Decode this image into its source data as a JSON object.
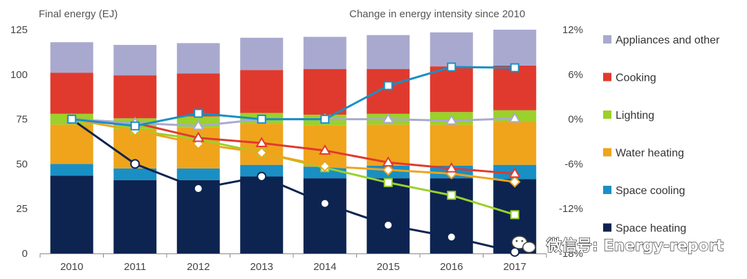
{
  "chart_data": {
    "type": "bar",
    "stacked": true,
    "title_left": "Final energy (EJ)",
    "title_right": "Change in energy intensity since 2010",
    "categories": [
      "2010",
      "2011",
      "2012",
      "2013",
      "2014",
      "2015",
      "2016",
      "2017"
    ],
    "ylim": [
      0,
      125
    ],
    "y_ticks": [
      "0",
      "25",
      "50",
      "75",
      "100",
      "125"
    ],
    "y2lim": [
      -18,
      12
    ],
    "y2_ticks": [
      "12%",
      "6%",
      "0%",
      "-6%",
      "-12%",
      "-18%"
    ],
    "series": [
      {
        "name": "Space heating",
        "color": "#0d2451",
        "values": [
          43.5,
          41,
          41,
          43,
          42,
          42,
          42,
          41.5
        ]
      },
      {
        "name": "Space cooling",
        "color": "#1a8fc4",
        "values": [
          6.5,
          6.5,
          6.5,
          6.5,
          6.5,
          7,
          7,
          8
        ]
      },
      {
        "name": "Water heating",
        "color": "#efa41c",
        "values": [
          22,
          22,
          23,
          23,
          23,
          23,
          23,
          24
        ]
      },
      {
        "name": "Lighting",
        "color": "#9ad12a",
        "values": [
          6,
          6,
          6,
          6,
          6,
          6,
          7,
          6.5
        ]
      },
      {
        "name": "Cooking",
        "color": "#e03a2e",
        "values": [
          23,
          24,
          24,
          24,
          25.5,
          25,
          25.5,
          25
        ]
      },
      {
        "name": "Appliances and other",
        "color": "#a9a9d0",
        "values": [
          17,
          17,
          17,
          18,
          18,
          19,
          19,
          20
        ]
      }
    ],
    "lines": [
      {
        "name": "Space heating",
        "marker": "circle",
        "color": "#0d2451",
        "values": [
          0,
          -6,
          -9.3,
          -7.7,
          -11.3,
          -14.2,
          -15.8,
          -17.8
        ]
      },
      {
        "name": "Space cooling",
        "marker": "square",
        "color": "#1a8fc4",
        "values": [
          0,
          -0.9,
          0.8,
          0,
          0,
          4.5,
          7,
          6.9
        ]
      },
      {
        "name": "Water heating",
        "marker": "diamond",
        "color": "#efa41c",
        "values": [
          0,
          -1.5,
          -3.3,
          -4.5,
          -6.3,
          -6.8,
          -7.3,
          -8.4
        ]
      },
      {
        "name": "Lighting",
        "marker": "square",
        "color": "#9ad12a",
        "values": [
          0,
          -1.5,
          -2.7,
          -4.5,
          -6.5,
          -8.5,
          -10.2,
          -12.8
        ]
      },
      {
        "name": "Cooking",
        "marker": "triangle",
        "color": "#e03a2e",
        "values": [
          0,
          -0.5,
          -2.5,
          -3.2,
          -4.2,
          -5.8,
          -6.6,
          -7.3
        ]
      },
      {
        "name": "Appliances and other",
        "marker": "triangle",
        "color": "#a9a9d0",
        "values": [
          0,
          -0.5,
          -0.9,
          0,
          0,
          0,
          -0.2,
          0.1
        ]
      }
    ],
    "legend": [
      "Appliances and other",
      "Cooking",
      "Lighting",
      "Water heating",
      "Space cooling",
      "Space heating"
    ]
  },
  "watermark": "微信号: Energy-report",
  "wechat_icon": "wechat-icon"
}
